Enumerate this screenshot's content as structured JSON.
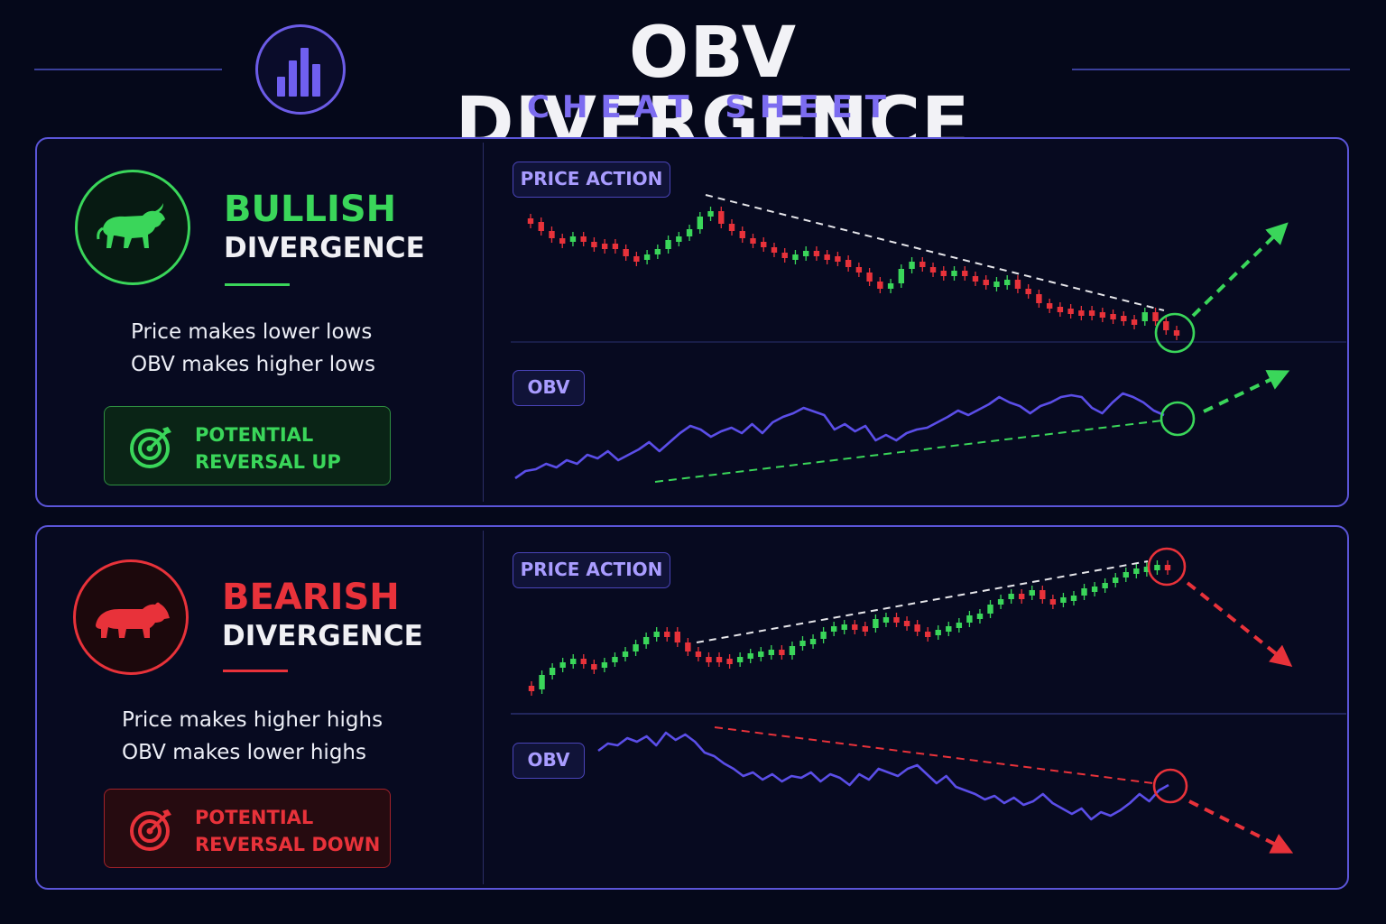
{
  "header": {
    "title": "OBV DIVERGENCE",
    "subtitle": "CHEAT SHEET",
    "logo_icon": "bar-chart-icon",
    "accent": "#6c5ce7"
  },
  "colors": {
    "bull": "#3ad65a",
    "bear": "#e8323a",
    "obv_line": "#5b4ee8",
    "trend_line": "#e6e6ea",
    "background": "#05081a",
    "panel_border": "#5b55d8"
  },
  "bullish": {
    "icon": "bull-icon",
    "title": "BULLISH",
    "subtitle": "DIVERGENCE",
    "desc_lines": [
      "Price makes lower lows",
      "OBV makes higher lows"
    ],
    "reversal_icon": "target-icon",
    "reversal_lines": [
      "POTENTIAL",
      "REVERSAL UP"
    ],
    "price_tag": "PRICE ACTION",
    "obv_tag": "OBV"
  },
  "bearish": {
    "icon": "bear-icon",
    "title": "BEARISH",
    "subtitle": "DIVERGENCE",
    "desc_lines": [
      "Price makes higher highs",
      "OBV makes lower highs"
    ],
    "reversal_icon": "target-icon",
    "reversal_lines": [
      "POTENTIAL",
      "REVERSAL DOWN"
    ],
    "price_tag": "PRICE ACTION",
    "obv_tag": "OBV"
  },
  "chart_data": [
    {
      "type": "candlestick",
      "section": "bullish",
      "panel": "price",
      "trend": "lower lows",
      "close": [
        246,
        256,
        264,
        266,
        262,
        268,
        270,
        270,
        276,
        284,
        288,
        282,
        276,
        266,
        262,
        254,
        240,
        234,
        248,
        256,
        264,
        268,
        274,
        280,
        284,
        282,
        278,
        282,
        284,
        288,
        296,
        302,
        312,
        320,
        314,
        298,
        290,
        296,
        300,
        304,
        300,
        306,
        310,
        316,
        312,
        310,
        320,
        326,
        336,
        340,
        342,
        344,
        344,
        346,
        348,
        350,
        354,
        356,
        346,
        356,
        366,
        370
      ],
      "signal": "reversal up"
    },
    {
      "type": "line",
      "section": "bullish",
      "panel": "obv",
      "trend": "higher lows",
      "values": [
        530,
        522,
        520,
        514,
        518,
        510,
        514,
        504,
        508,
        500,
        510,
        504,
        498,
        490,
        500,
        490,
        480,
        472,
        476,
        484,
        478,
        474,
        480,
        470,
        480,
        468,
        462,
        458,
        452,
        456,
        460,
        476,
        470,
        478,
        472,
        488,
        482,
        488,
        480,
        476,
        474,
        468,
        462,
        455,
        460,
        454,
        448,
        440,
        446,
        450,
        458,
        450,
        446,
        440,
        438,
        440,
        452,
        458,
        446,
        436,
        440,
        446,
        455,
        460
      ],
      "signal": "reversal up"
    },
    {
      "type": "candlestick",
      "section": "bearish",
      "panel": "price",
      "trend": "higher highs",
      "close": [
        764,
        748,
        740,
        734,
        730,
        736,
        740,
        734,
        728,
        722,
        714,
        706,
        700,
        700,
        712,
        722,
        728,
        728,
        730,
        732,
        728,
        724,
        722,
        720,
        726,
        716,
        710,
        708,
        700,
        694,
        692,
        694,
        696,
        686,
        684,
        688,
        692,
        700,
        704,
        698,
        694,
        690,
        682,
        680,
        670,
        664,
        658,
        660,
        654,
        664,
        668,
        662,
        660,
        652,
        650,
        646,
        640,
        634,
        630,
        628,
        626,
        630
      ],
      "signal": "reversal down"
    },
    {
      "type": "line",
      "section": "bearish",
      "panel": "obv",
      "trend": "lower highs",
      "values": [
        832,
        824,
        826,
        818,
        822,
        816,
        826,
        812,
        820,
        814,
        822,
        834,
        838,
        846,
        852,
        860,
        856,
        864,
        858,
        866,
        860,
        862,
        856,
        866,
        858,
        862,
        870,
        858,
        864,
        852,
        856,
        860,
        852,
        848,
        858,
        868,
        860,
        872,
        876,
        880,
        886,
        882,
        890,
        884,
        892,
        888,
        880,
        890,
        896,
        902,
        896,
        908,
        900,
        904,
        898,
        890,
        880,
        888,
        876,
        870
      ],
      "signal": "reversal down"
    }
  ]
}
